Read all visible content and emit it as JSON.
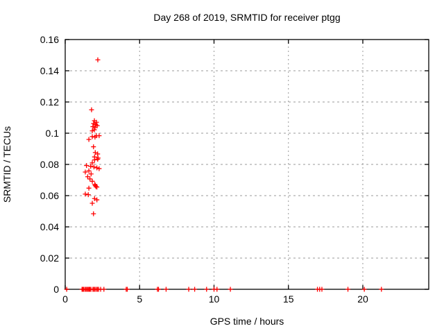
{
  "page": {
    "background": "#ffffff",
    "text_color": "#000000"
  },
  "chart_data": {
    "type": "scatter",
    "title": "Day 268 of 2019, SRMTID for receiver ptgg",
    "xlabel": "GPS time / hours",
    "ylabel": "SRMTID / TECUs",
    "xlim": [
      0,
      24.43
    ],
    "ylim": [
      0,
      0.16
    ],
    "xticks": [
      0,
      5,
      10,
      15,
      20
    ],
    "yticks": [
      0,
      0.02,
      0.04,
      0.06,
      0.08,
      0.1,
      0.12,
      0.14,
      0.16
    ],
    "ytick_labels": [
      "0",
      "0.02",
      "0.04",
      "0.06",
      "0.08",
      "0.1",
      "0.12",
      "0.14",
      "0.16"
    ],
    "grid": true,
    "grid_color": "#999999",
    "border_color": "#000000",
    "legend": "none",
    "marker": {
      "shape": "plus",
      "color": "#ff0000",
      "size": 7
    },
    "series": [
      {
        "name": "SRMTID",
        "points": [
          [
            2.19,
            0.147
          ],
          [
            1.77,
            0.115
          ],
          [
            1.96,
            0.108
          ],
          [
            2.1,
            0.107
          ],
          [
            1.91,
            0.1062
          ],
          [
            2.05,
            0.1055
          ],
          [
            2.15,
            0.1048
          ],
          [
            1.86,
            0.1042
          ],
          [
            2.0,
            0.1036
          ],
          [
            1.96,
            0.1022
          ],
          [
            1.82,
            0.1015
          ],
          [
            2.1,
            0.0984
          ],
          [
            2.28,
            0.0984
          ],
          [
            1.82,
            0.0978
          ],
          [
            2.0,
            0.0975
          ],
          [
            1.59,
            0.096
          ],
          [
            1.9,
            0.0913
          ],
          [
            2.02,
            0.0876
          ],
          [
            2.18,
            0.0867
          ],
          [
            1.97,
            0.0848
          ],
          [
            2.21,
            0.0841
          ],
          [
            2.18,
            0.0833
          ],
          [
            1.97,
            0.0829
          ],
          [
            1.82,
            0.081
          ],
          [
            1.43,
            0.0793
          ],
          [
            1.71,
            0.0788
          ],
          [
            1.93,
            0.0784
          ],
          [
            2.13,
            0.0778
          ],
          [
            2.28,
            0.0773
          ],
          [
            1.59,
            0.0759
          ],
          [
            1.35,
            0.0751
          ],
          [
            1.74,
            0.0739
          ],
          [
            1.51,
            0.0721
          ],
          [
            1.66,
            0.0707
          ],
          [
            1.82,
            0.0692
          ],
          [
            1.99,
            0.0672
          ],
          [
            2.02,
            0.0665
          ],
          [
            2.06,
            0.0658
          ],
          [
            2.13,
            0.0655
          ],
          [
            1.59,
            0.0648
          ],
          [
            1.35,
            0.061
          ],
          [
            1.55,
            0.0606
          ],
          [
            1.97,
            0.0581
          ],
          [
            2.13,
            0.0573
          ],
          [
            1.82,
            0.0551
          ],
          [
            1.9,
            0.0484
          ],
          [
            0.1,
            0
          ],
          [
            1.13,
            0
          ],
          [
            1.18,
            0
          ],
          [
            1.24,
            0
          ],
          [
            1.33,
            0
          ],
          [
            1.4,
            0
          ],
          [
            1.47,
            0
          ],
          [
            1.54,
            0
          ],
          [
            1.6,
            0
          ],
          [
            1.66,
            0
          ],
          [
            1.73,
            0
          ],
          [
            1.86,
            0
          ],
          [
            1.93,
            0
          ],
          [
            2.0,
            0
          ],
          [
            2.09,
            0
          ],
          [
            2.17,
            0
          ],
          [
            2.24,
            0
          ],
          [
            2.38,
            0
          ],
          [
            2.6,
            0
          ],
          [
            4.1,
            0
          ],
          [
            4.17,
            0
          ],
          [
            6.2,
            0
          ],
          [
            6.27,
            0
          ],
          [
            6.78,
            0
          ],
          [
            8.3,
            0
          ],
          [
            8.7,
            0
          ],
          [
            9.5,
            0
          ],
          [
            10.0,
            0
          ],
          [
            10.2,
            0
          ],
          [
            11.1,
            0
          ],
          [
            16.95,
            0
          ],
          [
            17.1,
            0
          ],
          [
            17.25,
            0
          ],
          [
            19.0,
            0
          ],
          [
            20.1,
            0
          ],
          [
            21.25,
            0
          ]
        ]
      }
    ]
  }
}
